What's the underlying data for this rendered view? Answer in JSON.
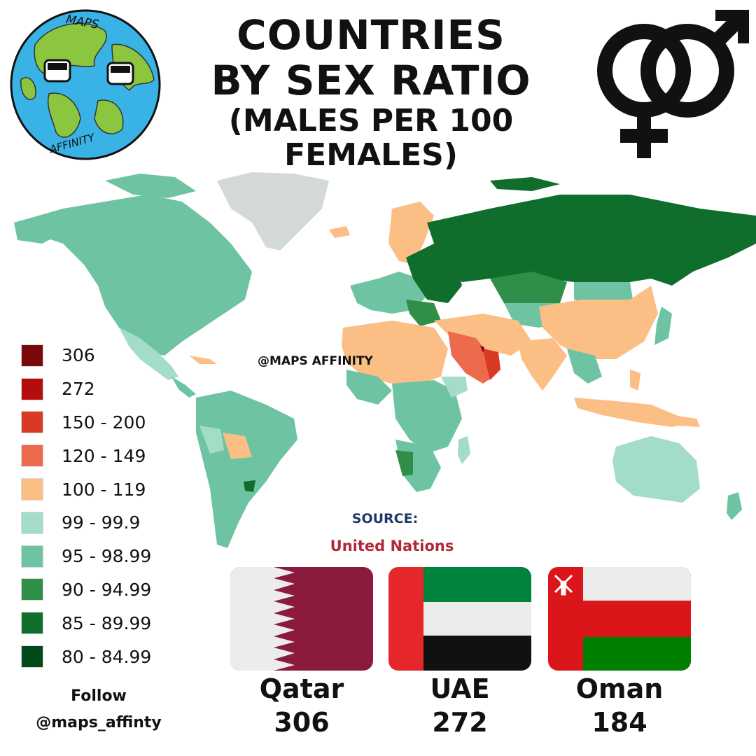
{
  "title": {
    "line1": "COUNTRIES",
    "line2": "BY SEX RATIO",
    "line3": "(MALES PER 100 FEMALES)"
  },
  "logo": {
    "top_text": "MAPS",
    "bottom_text": "AFFINITY"
  },
  "icons": {
    "logo": "globe-mascot-icon",
    "sex_symbol": "male-female-symbol-icon"
  },
  "watermark": "@MAPS AFFINITY",
  "legend": [
    {
      "label": "306",
      "color": "#7a0a0a"
    },
    {
      "label": "272",
      "color": "#b50d0d"
    },
    {
      "label": "150 - 200",
      "color": "#d83a24"
    },
    {
      "label": "120 - 149",
      "color": "#ee6a4c"
    },
    {
      "label": "100 - 119",
      "color": "#fbbf86"
    },
    {
      "label": "99 - 99.9",
      "color": "#a3dcc7"
    },
    {
      "label": "95 - 98.99",
      "color": "#6ec4a2"
    },
    {
      "label": "90 - 94.99",
      "color": "#2f8f48"
    },
    {
      "label": "85 - 89.99",
      "color": "#0f6e2c"
    },
    {
      "label": "80 - 84.99",
      "color": "#034a1a"
    }
  ],
  "follow": {
    "line1": "Follow",
    "line2": "@maps_affinty"
  },
  "source": {
    "label": "SOURCE:",
    "value": "United Nations"
  },
  "top_countries": [
    {
      "name": "Qatar",
      "value": "306",
      "flag": "qatar-flag"
    },
    {
      "name": "UAE",
      "value": "272",
      "flag": "uae-flag"
    },
    {
      "name": "Oman",
      "value": "184",
      "flag": "oman-flag"
    }
  ],
  "map_colors": {
    "no_data": "#d3d9d9",
    "lowest": "#034a1a"
  }
}
